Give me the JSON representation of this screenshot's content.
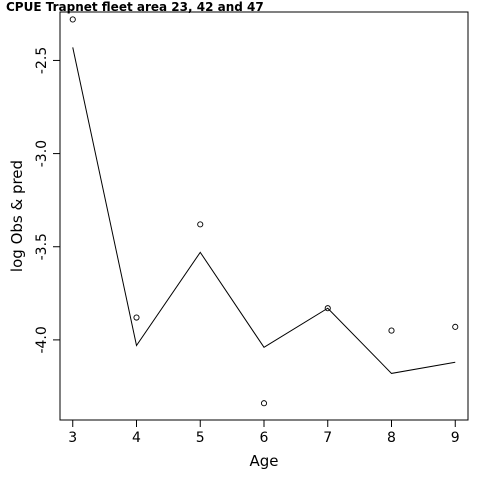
{
  "chart_data": {
    "type": "line",
    "title": "CPUE Trapnet fleet area 23, 42 and 47",
    "xlabel": "Age",
    "ylabel": "log Obs & pred",
    "xlim": [
      2.8,
      9.2
    ],
    "ylim": [
      -4.43,
      -2.24
    ],
    "x_ticks": [
      3,
      4,
      5,
      6,
      7,
      8,
      9
    ],
    "y_ticks": [
      -2.5,
      -3.0,
      -3.5,
      -4.0
    ],
    "x_tick_labels": [
      "3",
      "4",
      "5",
      "6",
      "7",
      "8",
      "9"
    ],
    "y_tick_labels": [
      "-2.5",
      "-3.0",
      "-3.5",
      "-4.0"
    ],
    "grid": false,
    "legend": "none",
    "series": [
      {
        "style": "points",
        "x": [
          3,
          4,
          5,
          6,
          7,
          8,
          9
        ],
        "y": [
          -2.28,
          -3.88,
          -3.38,
          -4.34,
          -3.83,
          -3.95,
          -3.93
        ]
      },
      {
        "style": "line",
        "x": [
          3,
          4,
          5,
          6,
          7,
          8,
          9
        ],
        "y": [
          -2.43,
          -4.03,
          -3.53,
          -4.04,
          -3.83,
          -4.18,
          -4.12
        ]
      }
    ]
  }
}
